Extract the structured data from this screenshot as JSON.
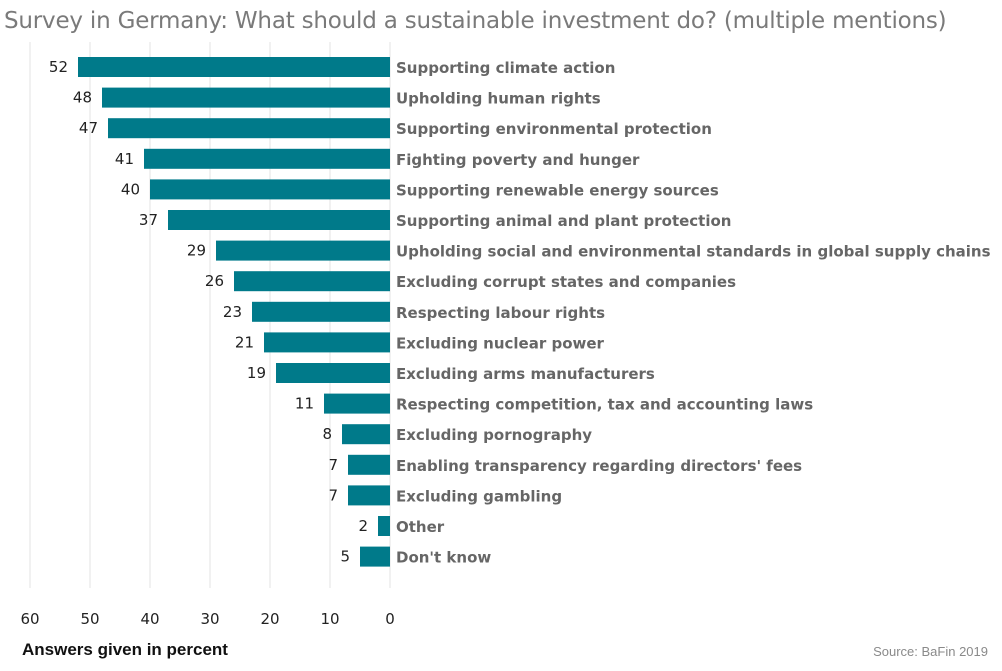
{
  "chart_data": {
    "type": "bar",
    "orientation": "horizontal",
    "title": "Survey in Germany: What should a sustainable investment do? (multiple mentions)",
    "xlabel": "Answers given in percent",
    "source": "Source: BaFin 2019",
    "bar_color": "#007a8a",
    "xlim": [
      0,
      60
    ],
    "x_direction": "reversed",
    "xticks": [
      60,
      50,
      40,
      30,
      20,
      10,
      0
    ],
    "grid": true,
    "categories": [
      "Supporting climate action",
      "Upholding human rights",
      "Supporting environmental protection",
      "Fighting poverty and hunger",
      "Supporting renewable energy sources",
      "Supporting animal and plant protection",
      "Upholding social and environmental standards in global supply chains",
      "Excluding corrupt states and companies",
      "Respecting labour rights",
      "Excluding nuclear power",
      "Excluding arms manufacturers",
      "Respecting competition, tax and accounting laws",
      "Excluding pornography",
      "Enabling transparency regarding directors' fees",
      "Excluding gambling",
      "Other",
      "Don't know"
    ],
    "values": [
      52,
      48,
      47,
      41,
      40,
      37,
      29,
      26,
      23,
      21,
      19,
      11,
      8,
      7,
      7,
      2,
      5
    ]
  }
}
